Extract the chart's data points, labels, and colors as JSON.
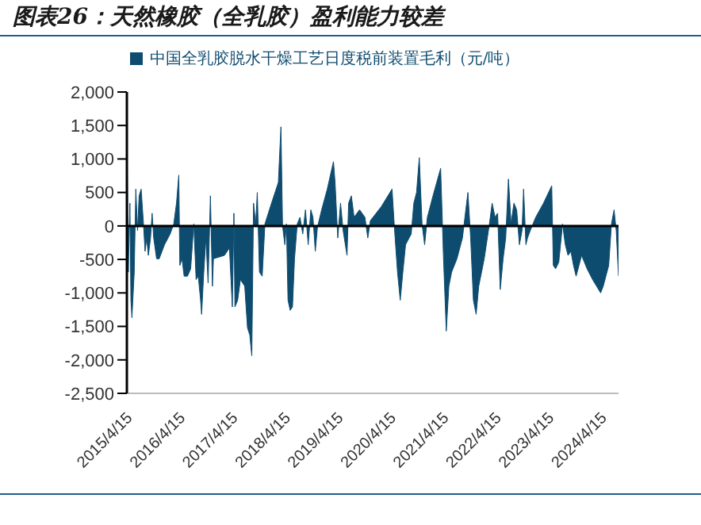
{
  "chart_data": {
    "type": "area",
    "title": "图表26：天然橡胶（全乳胶）盈利能力较差",
    "x": [
      "2015-04-15",
      "2015-04-25",
      "2015-05-06",
      "2015-05-13",
      "2015-05-20",
      "2015-06-05",
      "2015-06-16",
      "2015-06-28",
      "2015-07-09",
      "2015-07-23",
      "2015-08-08",
      "2015-08-19",
      "2015-08-30",
      "2015-09-11",
      "2015-09-26",
      "2015-10-07",
      "2015-10-18",
      "2015-11-07",
      "2015-11-25",
      "2016-01-01",
      "2016-02-09",
      "2016-03-05",
      "2016-03-24",
      "2016-04-09",
      "2016-04-16",
      "2016-05-01",
      "2016-05-16",
      "2016-06-08",
      "2016-06-30",
      "2016-07-22",
      "2016-08-07",
      "2016-08-22",
      "2016-09-07",
      "2016-09-14",
      "2016-09-29",
      "2016-10-14",
      "2016-10-29",
      "2016-11-14",
      "2016-11-28",
      "2016-12-05",
      "2017-02-19",
      "2017-03-26",
      "2017-04-15",
      "2017-04-26",
      "2017-05-03",
      "2017-05-22",
      "2017-06-10",
      "2017-07-10",
      "2017-07-29",
      "2017-08-14",
      "2017-08-28",
      "2017-09-09",
      "2017-09-24",
      "2017-10-05",
      "2017-10-20",
      "2017-11-08",
      "2017-11-27",
      "2018-01-04",
      "2018-02-28",
      "2018-03-18",
      "2018-03-29",
      "2018-04-14",
      "2018-04-25",
      "2018-05-06",
      "2018-05-21",
      "2018-06-06",
      "2018-06-20",
      "2018-07-09",
      "2018-07-28",
      "2018-08-16",
      "2018-09-04",
      "2018-09-23",
      "2018-10-11",
      "2018-10-26",
      "2018-11-11",
      "2018-11-26",
      "2018-12-25",
      "2019-02-02",
      "2019-03-17",
      "2019-03-28",
      "2019-04-16",
      "2019-05-05",
      "2019-05-23",
      "2019-06-19",
      "2019-06-30",
      "2019-07-19",
      "2019-08-07",
      "2019-09-14",
      "2019-10-21",
      "2019-11-10",
      "2019-11-28",
      "2020-02-12",
      "2020-04-26",
      "2020-05-14",
      "2020-06-03",
      "2020-06-22",
      "2020-07-10",
      "2020-07-29",
      "2020-09-06",
      "2020-09-24",
      "2020-10-13",
      "2020-11-01",
      "2020-11-20",
      "2020-12-08",
      "2020-12-27",
      "2021-02-04",
      "2021-03-29",
      "2021-04-18",
      "2021-05-07",
      "2021-05-25",
      "2021-06-13",
      "2021-07-20",
      "2021-08-27",
      "2021-10-04",
      "2021-10-23",
      "2021-11-11",
      "2021-11-30",
      "2021-12-18",
      "2022-01-25",
      "2022-03-02",
      "2022-03-21",
      "2022-04-10",
      "2022-04-28",
      "2022-05-16",
      "2022-06-05",
      "2022-06-23",
      "2022-07-12",
      "2022-07-30",
      "2022-08-19",
      "2022-09-07",
      "2022-09-26",
      "2022-10-14",
      "2022-10-25",
      "2022-11-10",
      "2022-11-21",
      "2022-12-10",
      "2023-01-17",
      "2023-03-12",
      "2023-05-08",
      "2023-05-19",
      "2023-06-04",
      "2023-06-26",
      "2023-07-22",
      "2023-08-10",
      "2023-08-29",
      "2023-09-18",
      "2023-10-06",
      "2023-10-24",
      "2023-11-13",
      "2023-12-01",
      "2024-01-08",
      "2024-02-15",
      "2024-04-11",
      "2024-04-29",
      "2024-06-06",
      "2024-06-25",
      "2024-07-13",
      "2024-07-28",
      "2024-08-13"
    ],
    "series": [
      {
        "name": "中国全乳胶脱水干燥工艺日度税前装置毛利（元/吨）",
        "color": "#0e4c6f",
        "values": [
          1480,
          -690,
          340,
          -1110,
          -1370,
          -690,
          550,
          -70,
          450,
          550,
          30,
          -380,
          -180,
          -440,
          -180,
          190,
          -180,
          -490,
          -490,
          -280,
          -120,
          30,
          340,
          760,
          -590,
          -490,
          -750,
          -750,
          -640,
          30,
          -800,
          -750,
          -1110,
          -1320,
          -690,
          -180,
          -850,
          450,
          -900,
          -490,
          -440,
          -330,
          -1210,
          190,
          -1210,
          -1110,
          -800,
          -900,
          -1520,
          -1630,
          -1940,
          340,
          30,
          500,
          -690,
          -750,
          30,
          290,
          650,
          1480,
          0,
          -280,
          30,
          -1110,
          -1260,
          -1210,
          -490,
          30,
          130,
          -120,
          240,
          -280,
          240,
          130,
          -380,
          -20,
          240,
          550,
          960,
          650,
          -180,
          340,
          -70,
          -440,
          340,
          450,
          130,
          240,
          130,
          -180,
          80,
          290,
          550,
          -70,
          -690,
          -1110,
          -690,
          -280,
          -120,
          340,
          500,
          1020,
          30,
          -280,
          130,
          450,
          860,
          -490,
          -1570,
          -900,
          -690,
          -490,
          -180,
          500,
          -180,
          -1110,
          -1320,
          -900,
          -490,
          30,
          340,
          130,
          190,
          -950,
          -490,
          -180,
          700,
          30,
          340,
          240,
          -280,
          -70,
          550,
          -280,
          -180,
          -70,
          130,
          340,
          600,
          -590,
          -640,
          -540,
          30,
          -280,
          -440,
          -380,
          -590,
          -750,
          -590,
          -440,
          -640,
          -800,
          -1000,
          -900,
          -590,
          30,
          240,
          -70,
          -750
        ]
      }
    ],
    "xlim": [
      "2015-04-15",
      "2024-08-13"
    ],
    "xticks": [
      {
        "value": "2015-04-15",
        "label": "2015/4/15"
      },
      {
        "value": "2016-04-15",
        "label": "2016/4/15"
      },
      {
        "value": "2017-04-15",
        "label": "2017/4/15"
      },
      {
        "value": "2018-04-15",
        "label": "2018/4/15"
      },
      {
        "value": "2019-04-15",
        "label": "2019/4/15"
      },
      {
        "value": "2020-04-15",
        "label": "2020/4/15"
      },
      {
        "value": "2021-04-15",
        "label": "2021/4/15"
      },
      {
        "value": "2022-04-15",
        "label": "2022/4/15"
      },
      {
        "value": "2023-04-15",
        "label": "2023/4/15"
      },
      {
        "value": "2024-04-15",
        "label": "2024/4/15"
      }
    ],
    "ylim": [
      -2500,
      2000
    ],
    "yticks": [
      {
        "value": -2500,
        "label": "-2,500"
      },
      {
        "value": -2000,
        "label": "-2,000"
      },
      {
        "value": -1500,
        "label": "-1,500"
      },
      {
        "value": -1000,
        "label": "-1,000"
      },
      {
        "value": -500,
        "label": "-500"
      },
      0,
      500,
      {
        "value": 1000,
        "label": "1,000"
      },
      {
        "value": 1500,
        "label": "1,500"
      },
      {
        "value": 2000,
        "label": "2,000"
      }
    ],
    "ref_lines": [
      {
        "axis": "y",
        "value": 0,
        "color": "#000000"
      }
    ],
    "legend": "top",
    "marker": "none"
  }
}
